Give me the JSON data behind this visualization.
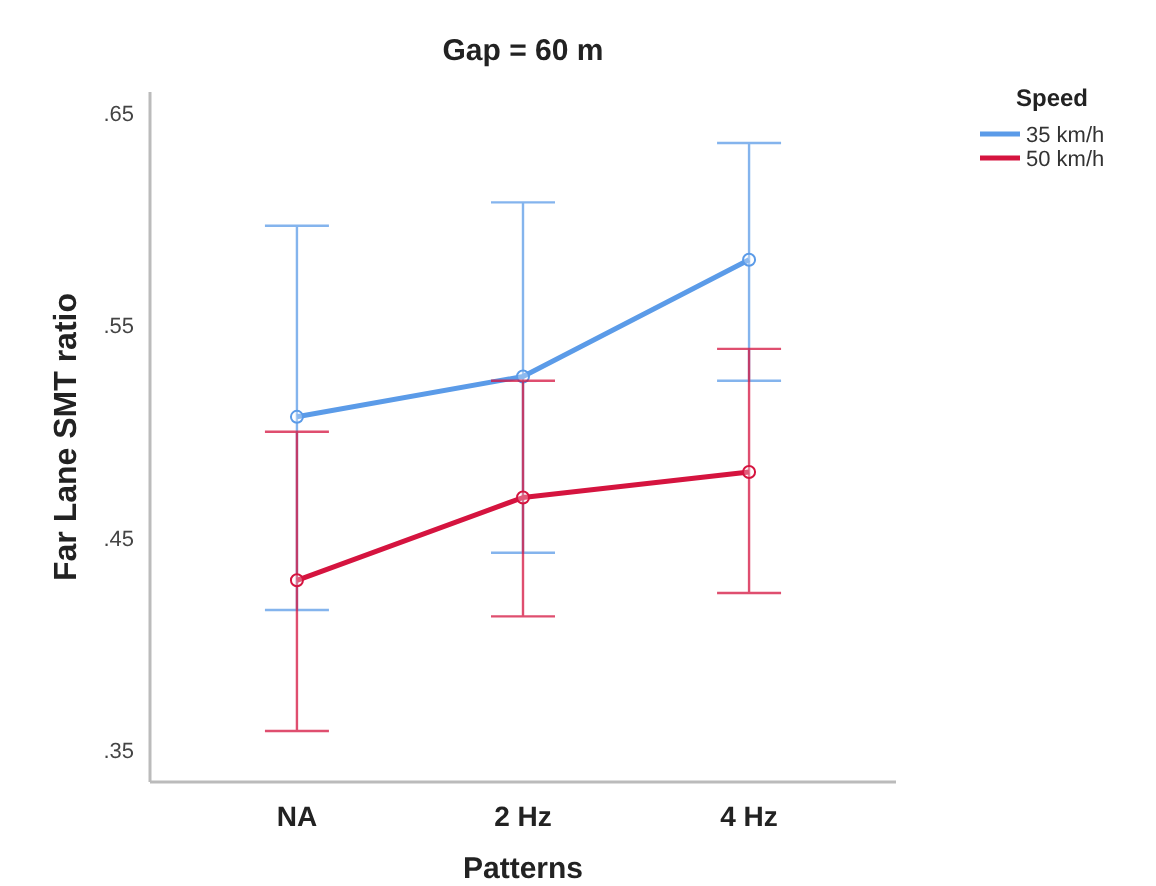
{
  "chart_data": {
    "type": "line",
    "title": "Gap = 60 m",
    "xlabel": "Patterns",
    "ylabel": "Far Lane SMT ratio",
    "legend_title": "Speed",
    "legend": "right",
    "marker": "circle",
    "line_style": "solid",
    "grid": false,
    "categories": [
      "NA",
      "2 Hz",
      "4 Hz"
    ],
    "ylim": [
      0.335,
      0.66
    ],
    "yticks": [
      {
        "value": 0.35,
        "label": ".35"
      },
      {
        "value": 0.45,
        "label": ".45"
      },
      {
        "value": 0.55,
        "label": ".55"
      },
      {
        "value": 0.65,
        "label": ".65"
      }
    ],
    "series": [
      {
        "name": "35 km/h",
        "color": "#5b9be8",
        "values": [
          0.507,
          0.526,
          0.581
        ],
        "errors": [
          [
            0.416,
            0.597
          ],
          [
            0.443,
            0.608
          ],
          [
            0.524,
            0.636
          ]
        ]
      },
      {
        "name": "50 km/h",
        "color": "#d5143f",
        "values": [
          0.43,
          0.469,
          0.481
        ],
        "errors": [
          [
            0.359,
            0.5
          ],
          [
            0.413,
            0.524
          ],
          [
            0.424,
            0.539
          ]
        ]
      }
    ]
  }
}
